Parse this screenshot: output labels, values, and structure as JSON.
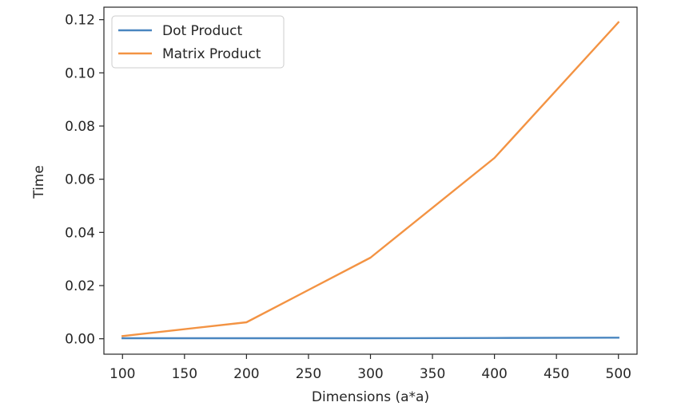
{
  "chart_data": {
    "type": "line",
    "title": "",
    "xlabel": "Dimensions (a*a)",
    "ylabel": "Time",
    "x": [
      100,
      200,
      300,
      400,
      500
    ],
    "series": [
      {
        "name": "Dot Product",
        "color": "#4a86c0",
        "values": [
          0.0002,
          0.0002,
          0.0002,
          0.0003,
          0.0004
        ]
      },
      {
        "name": "Matrix Product",
        "color": "#f39343",
        "values": [
          0.001,
          0.0062,
          0.0305,
          0.068,
          0.119
        ]
      }
    ],
    "xlim": [
      85,
      515
    ],
    "ylim": [
      -0.0058,
      0.1247
    ],
    "xticks": [
      100,
      150,
      200,
      250,
      300,
      350,
      400,
      450,
      500
    ],
    "xtick_labels": [
      "100",
      "150",
      "200",
      "250",
      "300",
      "350",
      "400",
      "450",
      "500"
    ],
    "yticks": [
      0,
      0.02,
      0.04,
      0.06,
      0.08,
      0.1,
      0.12
    ],
    "ytick_labels": [
      "0.00",
      "0.02",
      "0.04",
      "0.06",
      "0.08",
      "0.10",
      "0.12"
    ],
    "grid": false,
    "legend_position": "top-left"
  }
}
